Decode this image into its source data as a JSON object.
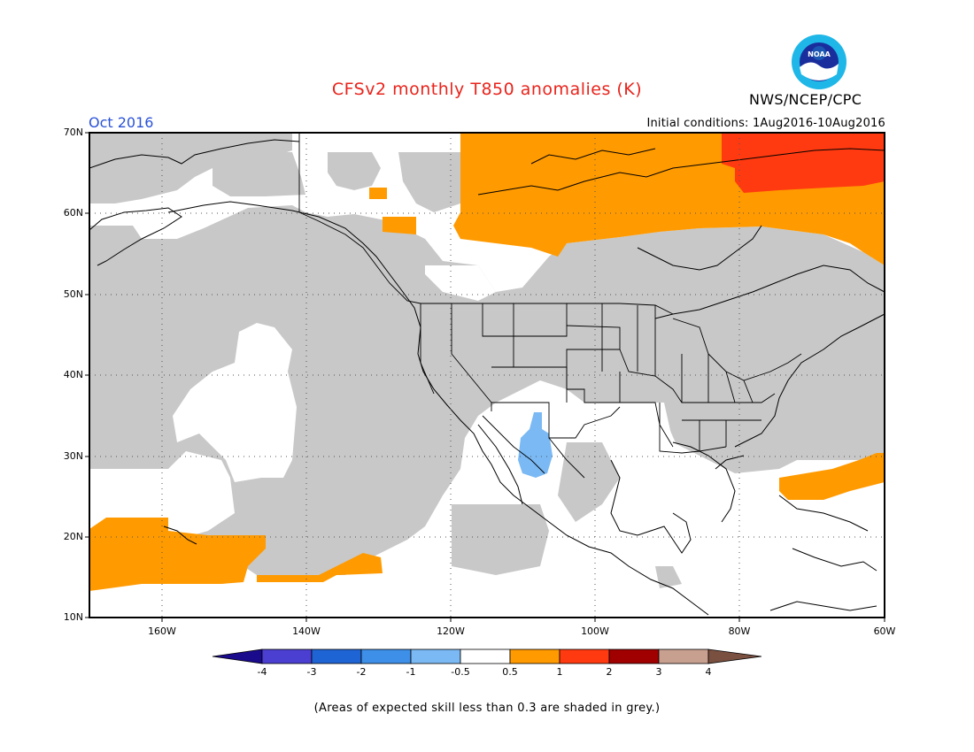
{
  "header": {
    "title": "CFSv2 monthly T850 anomalies (K)",
    "month": "Oct 2016",
    "initial_conditions": "Initial conditions: 1Aug2016-10Aug2016",
    "agency": "NWS/NCEP/CPC",
    "logo_text": "NOAA",
    "logo_icon": "noaa-logo-icon"
  },
  "axes": {
    "lat_labels": [
      "70N",
      "60N",
      "50N",
      "40N",
      "30N",
      "20N",
      "10N"
    ],
    "lon_labels": [
      "160W",
      "140W",
      "120W",
      "100W",
      "80W",
      "60W"
    ],
    "lat_range": [
      10,
      70
    ],
    "lon_range": [
      -170,
      -60
    ]
  },
  "colorbar": {
    "labels": [
      "-4",
      "-3",
      "-2",
      "-1",
      "-0.5",
      "0.5",
      "1",
      "2",
      "3",
      "4"
    ],
    "colors": [
      "#1a0a8c",
      "#4b3fd1",
      "#1f64d4",
      "#3d8fe8",
      "#7ab9f4",
      "#ffffff",
      "#ff9a00",
      "#ff3a10",
      "#a00000",
      "#c8a090",
      "#7a5040"
    ]
  },
  "footnote": "(Areas of expected skill less than 0.3 are shaded in grey.)",
  "legend_colors": {
    "low_skill": "#c8c8c8",
    "warm_05_1": "#ff9a00",
    "warm_1_2": "#ff3a10",
    "cool_05_1": "#7ab9f4"
  }
}
